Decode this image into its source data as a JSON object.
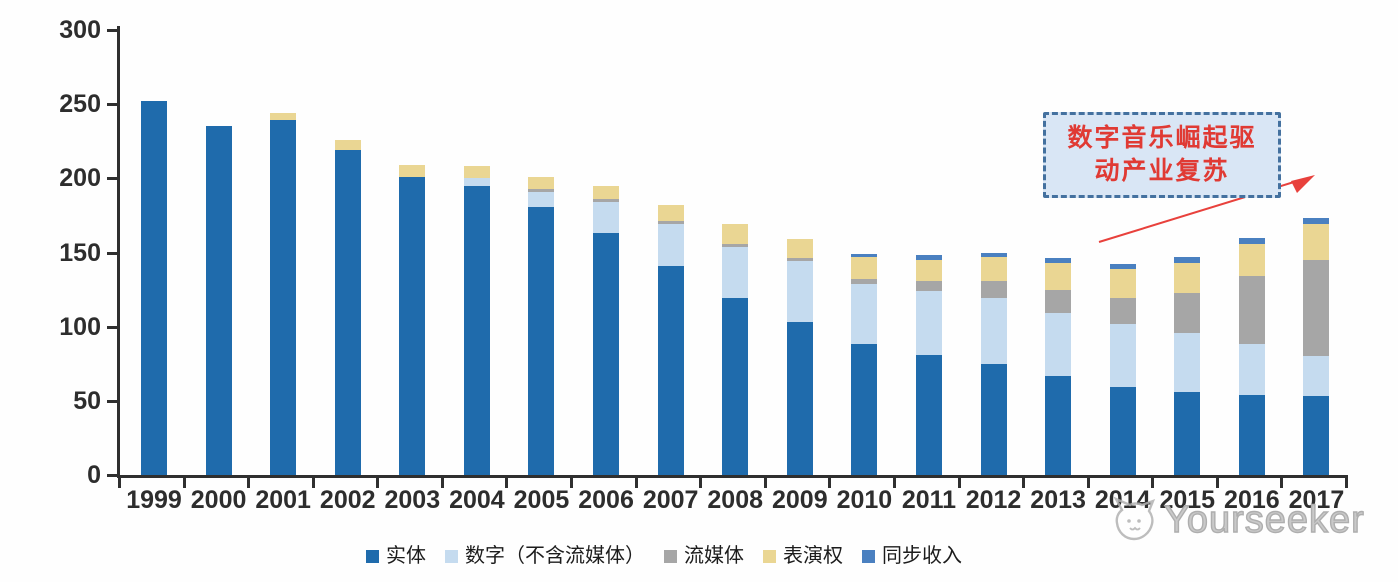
{
  "chart_data": {
    "type": "bar",
    "stacked": true,
    "title": "",
    "xlabel": "",
    "ylabel": "",
    "categories": [
      "1999",
      "2000",
      "2001",
      "2002",
      "2003",
      "2004",
      "2005",
      "2006",
      "2007",
      "2008",
      "2009",
      "2010",
      "2011",
      "2012",
      "2013",
      "2014",
      "2015",
      "2016",
      "2017"
    ],
    "series": [
      {
        "name": "实体",
        "color": "#1f6bac",
        "values": [
          252,
          235,
          239,
          219,
          201,
          195,
          181,
          163,
          141,
          119,
          103,
          88,
          81,
          75,
          67,
          59,
          56,
          54,
          53
        ]
      },
      {
        "name": "数字（不含流媒体）",
        "color": "#c5dbef",
        "values": [
          0,
          0,
          0,
          0,
          0,
          5,
          10,
          21,
          28,
          35,
          41,
          41,
          43,
          44,
          42,
          43,
          40,
          34,
          27
        ]
      },
      {
        "name": "流媒体",
        "color": "#a6a6a6",
        "values": [
          0,
          0,
          0,
          0,
          0,
          0,
          2,
          2,
          2,
          2,
          2,
          3,
          7,
          12,
          16,
          17,
          27,
          46,
          65
        ]
      },
      {
        "name": "表演权",
        "color": "#ead693",
        "values": [
          0,
          0,
          5,
          7,
          8,
          8,
          8,
          9,
          11,
          13,
          13,
          15,
          14,
          16,
          18,
          20,
          20,
          22,
          24
        ]
      },
      {
        "name": "同步收入",
        "color": "#4a80c0",
        "values": [
          0,
          0,
          0,
          0,
          0,
          0,
          0,
          0,
          0,
          0,
          0,
          2,
          3,
          3,
          3,
          3,
          4,
          4,
          4
        ]
      }
    ],
    "ylim": [
      0,
      300
    ],
    "yticks": [
      0,
      50,
      100,
      150,
      200,
      250,
      300
    ],
    "grid": false,
    "legend_position": "bottom"
  },
  "annotation": {
    "line1": "数字音乐崛起驱",
    "line2": "动产业复苏"
  },
  "watermark": {
    "brand": "Yourseeker"
  },
  "style_colors": {
    "axis": "#2f2f2f",
    "annotation_border": "#44719f",
    "annotation_fill": "#d9e6f5",
    "annotation_text": "#e03a34",
    "arrow": "#e8413c",
    "watermark": "#aeaeae"
  }
}
